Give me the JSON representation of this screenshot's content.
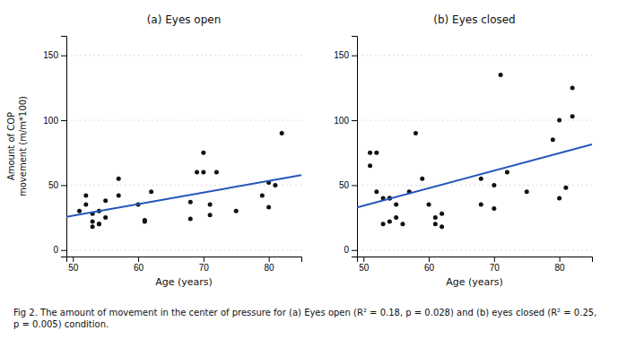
{
  "chart_data": [
    {
      "type": "scatter",
      "title": "(a) Eyes open",
      "xlabel": "Age (years)",
      "ylabel": "Amount of COP\nmovement (m/m*100)",
      "xlim": [
        49,
        85
      ],
      "ylim": [
        -5,
        165
      ],
      "xticks": [
        50,
        60,
        70,
        80
      ],
      "yticks": [
        0,
        50,
        100,
        150
      ],
      "grid": "y",
      "series": [
        {
          "type": "scatter",
          "color": "#111111",
          "x": [
            51,
            52,
            52,
            53,
            53,
            53,
            54,
            54,
            54,
            55,
            55,
            57,
            57,
            60,
            61,
            61,
            62,
            68,
            68,
            69,
            70,
            70,
            71,
            71,
            72,
            75,
            79,
            80,
            80,
            81,
            82
          ],
          "values": [
            30,
            35,
            42,
            28,
            22,
            18,
            30,
            20,
            20,
            25,
            38,
            42,
            55,
            35,
            23,
            22,
            45,
            24,
            37,
            60,
            75,
            60,
            35,
            27,
            60,
            30,
            42,
            52,
            33,
            50,
            90
          ]
        },
        {
          "type": "line",
          "color": "#2255bb",
          "x": [
            49,
            85
          ],
          "values": [
            25.59,
            57.75
          ]
        }
      ]
    },
    {
      "type": "scatter",
      "title": "(b) Eyes closed",
      "xlabel": "Age (years)",
      "xlim": [
        49,
        85
      ],
      "ylim": [
        -5,
        165
      ],
      "xticks": [
        50,
        60,
        70,
        80
      ],
      "yticks": [
        0,
        50,
        100,
        150
      ],
      "grid": "y",
      "series": [
        {
          "type": "scatter",
          "color": "#111111",
          "x": [
            51,
            51,
            52,
            52,
            53,
            53,
            54,
            54,
            54,
            55,
            55,
            56,
            57,
            58,
            59,
            60,
            61,
            61,
            62,
            62,
            68,
            68,
            70,
            70,
            71,
            72,
            75,
            79,
            80,
            80,
            81,
            82,
            82
          ],
          "values": [
            65,
            75,
            45,
            75,
            40,
            20,
            40,
            40,
            22,
            35,
            25,
            20,
            45,
            90,
            55,
            35,
            25,
            20,
            18,
            28,
            55,
            35,
            50,
            32,
            135,
            60,
            45,
            85,
            100,
            40,
            48,
            125,
            103
          ]
        },
        {
          "type": "line",
          "color": "#2255bb",
          "x": [
            49,
            85
          ],
          "values": [
            32.74,
            81.43
          ]
        }
      ]
    }
  ],
  "caption": "Fig 2.   The amount of movement in the center of pressure for (a) Eyes open (R² = 0.18, p = 0.028) and (b) eyes closed (R² = 0.25, p = 0.005) condition."
}
